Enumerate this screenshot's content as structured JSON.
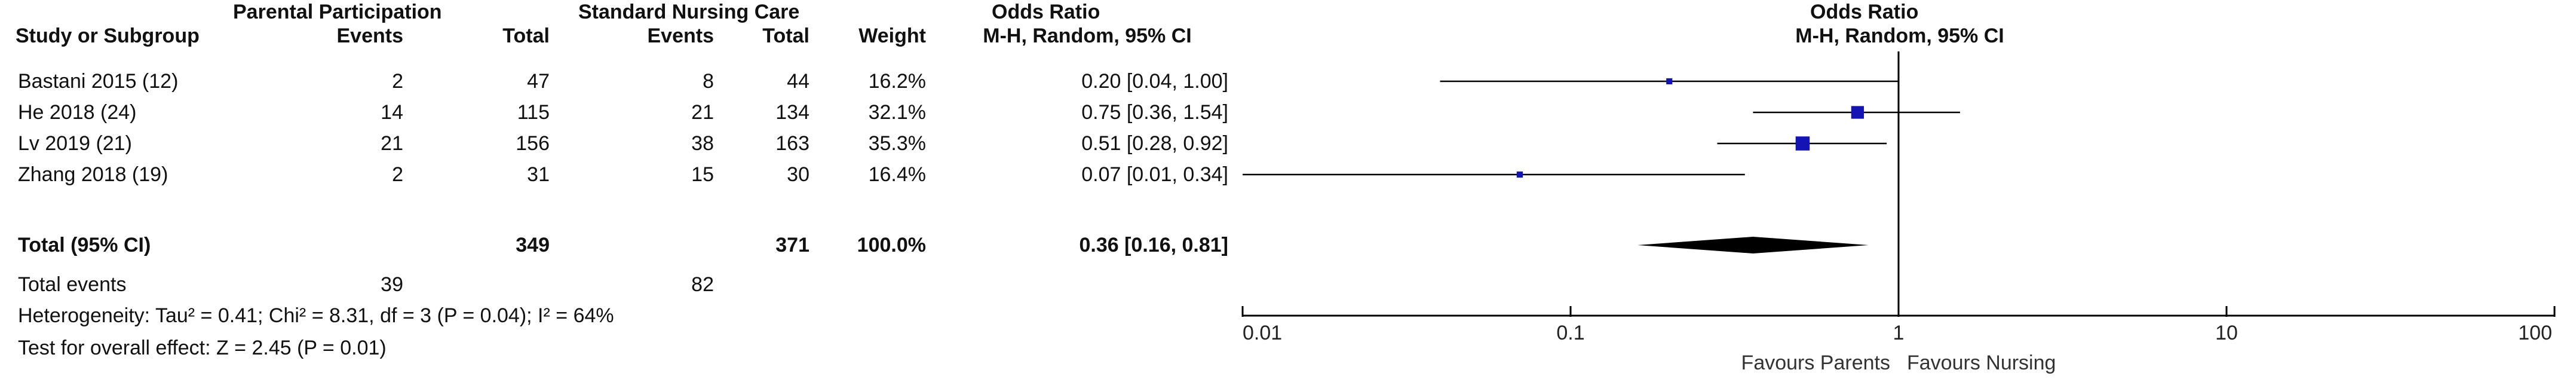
{
  "header": {
    "group1": "Parental Participation",
    "group2": "Standard Nursing Care",
    "or_table": "Odds Ratio",
    "or_plot": "Odds Ratio",
    "study": "Study or Subgroup",
    "events1": "Events",
    "total1": "Total",
    "events2": "Events",
    "total2": "Total",
    "weight": "Weight",
    "method_table": "M-H, Random, 95% CI",
    "method_plot": "M-H, Random, 95% CI"
  },
  "studies": [
    {
      "name": "Bastani 2015 (12)",
      "events1": "2",
      "total1": "47",
      "events2": "8",
      "total2": "44",
      "weight": "16.2%",
      "ci_text": "0.20 [0.04, 1.00]"
    },
    {
      "name": "He 2018 (24)",
      "events1": "14",
      "total1": "115",
      "events2": "21",
      "total2": "134",
      "weight": "32.1%",
      "ci_text": "0.75 [0.36, 1.54]"
    },
    {
      "name": "Lv 2019 (21)",
      "events1": "21",
      "total1": "156",
      "events2": "38",
      "total2": "163",
      "weight": "35.3%",
      "ci_text": "0.51 [0.28, 0.92]"
    },
    {
      "name": "Zhang 2018 (19)",
      "events1": "2",
      "total1": "31",
      "events2": "15",
      "total2": "30",
      "weight": "16.4%",
      "ci_text": "0.07 [0.01, 0.34]"
    }
  ],
  "total": {
    "label": "Total (95% CI)",
    "total1": "349",
    "total2": "371",
    "weight": "100.0%",
    "ci_text": "0.36 [0.16, 0.81]"
  },
  "total_events": {
    "label": "Total events",
    "events1": "39",
    "events2": "82"
  },
  "heterogeneity": "Heterogeneity: Tau² = 0.41; Chi² = 8.31, df = 3 (P = 0.04); I² = 64%",
  "overall_effect": "Test for overall effect: Z = 2.45 (P = 0.01)",
  "axis": {
    "favours_left": "Favours Parents",
    "favours_right": "Favours Nursing"
  },
  "colors": {
    "marker": "#1414b4",
    "line": "#000000"
  },
  "chart_data": {
    "type": "forest",
    "scale": "log",
    "xlim": [
      0.01,
      100
    ],
    "ticks": [
      0.01,
      0.1,
      1,
      10,
      100
    ],
    "tick_labels": [
      "0.01",
      "0.1",
      "1",
      "10",
      "100"
    ],
    "null_value": 1,
    "studies": [
      {
        "or": 0.2,
        "lo": 0.04,
        "hi": 1.0,
        "weight": 16.2
      },
      {
        "or": 0.75,
        "lo": 0.36,
        "hi": 1.54,
        "weight": 32.1
      },
      {
        "or": 0.51,
        "lo": 0.28,
        "hi": 0.92,
        "weight": 35.3
      },
      {
        "or": 0.07,
        "lo": 0.01,
        "hi": 0.34,
        "weight": 16.4
      }
    ],
    "pooled": {
      "or": 0.36,
      "lo": 0.16,
      "hi": 0.81
    }
  }
}
